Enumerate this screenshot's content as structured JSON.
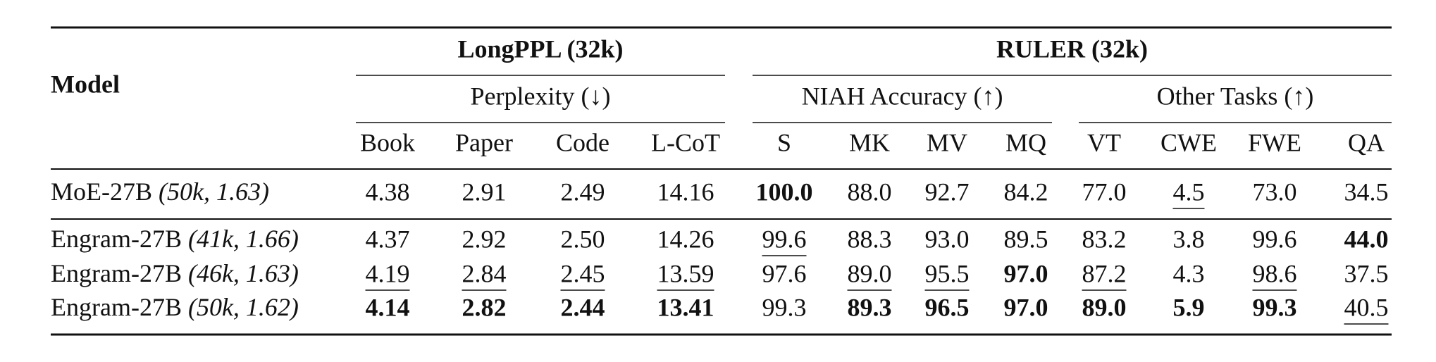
{
  "table": {
    "model_header": "Model",
    "groups": [
      {
        "title": "LongPPL (32k)",
        "subgroups": [
          {
            "title": "Perplexity (↓)",
            "columns": [
              "Book",
              "Paper",
              "Code",
              "L-CoT"
            ]
          }
        ]
      },
      {
        "title": "RULER (32k)",
        "subgroups": [
          {
            "title": "NIAH Accuracy (↑)",
            "columns": [
              "S",
              "MK",
              "MV",
              "MQ"
            ]
          },
          {
            "title": "Other Tasks (↑)",
            "columns": [
              "VT",
              "CWE",
              "FWE",
              "QA"
            ]
          }
        ]
      }
    ],
    "rows": [
      {
        "model": "MoE-27B",
        "config": "(50k, 1.63)",
        "cells": [
          "4.38",
          "2.91",
          "2.49",
          "14.16",
          "100.0",
          "88.0",
          "92.7",
          "84.2",
          "77.0",
          "4.5",
          "73.0",
          "34.5"
        ],
        "bold": [
          4
        ],
        "underline": [
          9
        ]
      },
      {
        "model": "Engram-27B",
        "config": "(41k, 1.66)",
        "cells": [
          "4.37",
          "2.92",
          "2.50",
          "14.26",
          "99.6",
          "88.3",
          "93.0",
          "89.5",
          "83.2",
          "3.8",
          "99.6",
          "44.0"
        ],
        "bold": [
          11
        ],
        "underline": [
          4
        ]
      },
      {
        "model": "Engram-27B",
        "config": "(46k, 1.63)",
        "cells": [
          "4.19",
          "2.84",
          "2.45",
          "13.59",
          "97.6",
          "89.0",
          "95.5",
          "97.0",
          "87.2",
          "4.3",
          "98.6",
          "37.5"
        ],
        "bold": [
          7
        ],
        "underline": [
          0,
          1,
          2,
          3,
          5,
          6,
          8,
          10
        ]
      },
      {
        "model": "Engram-27B",
        "config": "(50k, 1.62)",
        "cells": [
          "4.14",
          "2.82",
          "2.44",
          "13.41",
          "99.3",
          "89.3",
          "96.5",
          "97.0",
          "89.0",
          "5.9",
          "99.3",
          "40.5"
        ],
        "bold": [
          0,
          1,
          2,
          3,
          5,
          6,
          7,
          8,
          9,
          10
        ],
        "underline": [
          11
        ]
      }
    ]
  }
}
